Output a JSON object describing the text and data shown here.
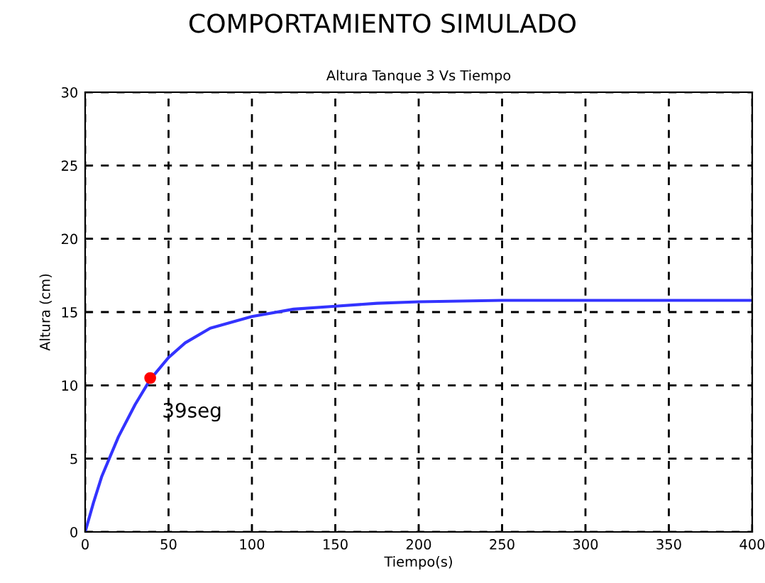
{
  "chart_data": {
    "type": "line",
    "title": "COMPORTAMIENTO SIMULADO",
    "subtitle": "Altura Tanque 3 Vs Tiempo",
    "xlabel": "Tiempo(s)",
    "ylabel": "Altura (cm)",
    "series": [
      {
        "color": "#3333ff",
        "x": [
          0,
          5,
          10,
          20,
          30,
          39,
          50,
          60,
          75,
          100,
          125,
          150,
          175,
          200,
          250,
          300,
          350,
          400
        ],
        "values": [
          0,
          2.0,
          3.8,
          6.5,
          8.7,
          10.4,
          11.9,
          12.9,
          13.9,
          14.7,
          15.2,
          15.4,
          15.6,
          15.7,
          15.8,
          15.8,
          15.8,
          15.8
        ]
      },
      {
        "type": "scatter",
        "color": "#ff0000",
        "marker": "circle",
        "x": [
          39
        ],
        "values": [
          10.5
        ]
      }
    ],
    "annotations": [
      {
        "text": "39seg",
        "x": 39,
        "y": 10.5
      }
    ],
    "xlim": [
      0,
      400
    ],
    "xticks": [
      0,
      50,
      100,
      150,
      200,
      250,
      300,
      350,
      400
    ],
    "ylim": [
      0,
      30
    ],
    "yticks": [
      0,
      5,
      10,
      15,
      20,
      25,
      30
    ],
    "grid": true,
    "line_style": "solid"
  }
}
